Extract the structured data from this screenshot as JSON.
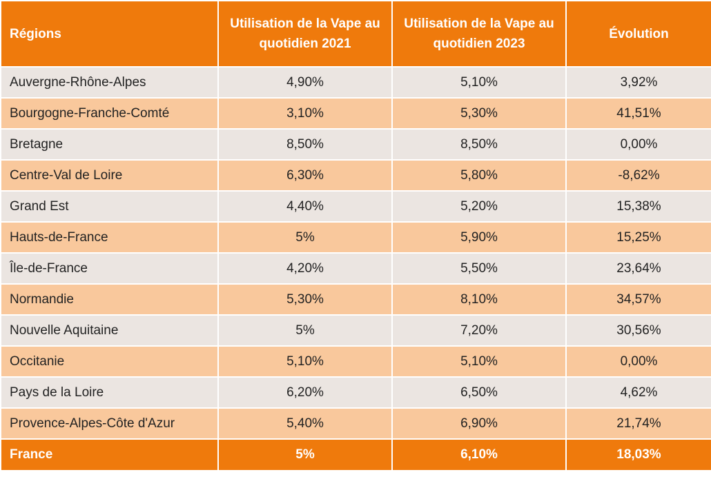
{
  "header": {
    "region": "Régions",
    "use_2021": "Utilisation de la Vape au quotidien 2021",
    "use_2023": "Utilisation de la Vape au quotidien 2023",
    "evolution": "Évolution"
  },
  "rows": [
    {
      "region": "Auvergne-Rhône-Alpes",
      "y2021": "4,90%",
      "y2023": "5,10%",
      "evolution": "3,92%"
    },
    {
      "region": "Bourgogne-Franche-Comté",
      "y2021": "3,10%",
      "y2023": "5,30%",
      "evolution": "41,51%"
    },
    {
      "region": "Bretagne",
      "y2021": "8,50%",
      "y2023": "8,50%",
      "evolution": "0,00%"
    },
    {
      "region": "Centre-Val de Loire",
      "y2021": "6,30%",
      "y2023": "5,80%",
      "evolution": "-8,62%"
    },
    {
      "region": "Grand Est",
      "y2021": "4,40%",
      "y2023": "5,20%",
      "evolution": "15,38%"
    },
    {
      "region": "Hauts-de-France",
      "y2021": "5%",
      "y2023": "5,90%",
      "evolution": "15,25%"
    },
    {
      "region": "Île-de-France",
      "y2021": "4,20%",
      "y2023": "5,50%",
      "evolution": "23,64%"
    },
    {
      "region": "Normandie",
      "y2021": "5,30%",
      "y2023": "8,10%",
      "evolution": "34,57%"
    },
    {
      "region": "Nouvelle Aquitaine",
      "y2021": "5%",
      "y2023": "7,20%",
      "evolution": "30,56%"
    },
    {
      "region": "Occitanie",
      "y2021": "5,10%",
      "y2023": "5,10%",
      "evolution": "0,00%"
    },
    {
      "region": "Pays de la Loire",
      "y2021": "6,20%",
      "y2023": "6,50%",
      "evolution": "4,62%"
    },
    {
      "region": "Provence-Alpes-Côte d'Azur",
      "y2021": "5,40%",
      "y2023": "6,90%",
      "evolution": "21,74%"
    }
  ],
  "total": {
    "region": "France",
    "y2021": "5%",
    "y2023": "6,10%",
    "evolution": "18,03%"
  },
  "colors": {
    "header_bg": "#ef7a0c",
    "row_light": "#ebe5e1",
    "row_orange": "#f9c89c",
    "header_text": "#ffffff"
  }
}
